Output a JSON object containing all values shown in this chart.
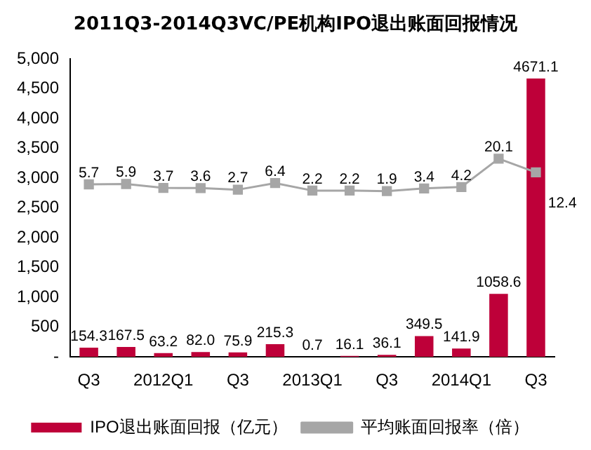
{
  "chart_data": {
    "type": "bar",
    "title": "2011Q3-2014Q3VC/PE机构IPO退出账面回报情况",
    "categories": [
      "Q3",
      null,
      "2012Q1",
      null,
      "Q3",
      null,
      "2013Q1",
      null,
      "Q3",
      null,
      "2014Q1",
      null,
      "Q3"
    ],
    "series": [
      {
        "name": "IPO退出账面回报（亿元）",
        "color": "#be0039",
        "values": [
          154.3,
          167.5,
          63.2,
          82.0,
          75.9,
          215.3,
          0.7,
          16.1,
          36.1,
          349.5,
          141.9,
          1058.6,
          4671.1
        ],
        "value_labels": [
          "154.3",
          "167.5",
          "63.2",
          "82.0",
          "75.9",
          "215.3",
          "0.7",
          "16.1",
          "36.1",
          "349.5",
          "141.9",
          "1058.6",
          "4671.1"
        ]
      },
      {
        "type": "line",
        "axis": "y2",
        "name": "平均账面回报率（倍）",
        "color": "#a6a6a6",
        "marker": "square",
        "values": [
          5.7,
          5.9,
          3.7,
          3.6,
          2.7,
          6.4,
          2.2,
          2.2,
          1.9,
          3.4,
          4.2,
          20.1,
          12.4
        ]
      }
    ],
    "ylim": [
      0,
      5000
    ],
    "yticks": [
      {
        "value": 0,
        "label": "-"
      },
      500,
      {
        "value": 1000,
        "label": "1,000"
      },
      {
        "value": 1500,
        "label": "1,500"
      },
      {
        "value": 2000,
        "label": "2,000"
      },
      {
        "value": 2500,
        "label": "2,500"
      },
      {
        "value": 3000,
        "label": "3,000"
      },
      {
        "value": 3500,
        "label": "3,500"
      },
      {
        "value": 4000,
        "label": "4,000"
      },
      {
        "value": 4500,
        "label": "4,500"
      },
      {
        "value": 5000,
        "label": "5,000"
      }
    ],
    "y2lim": [
      -91,
      76
    ],
    "data_labels": true,
    "legend": "bottom",
    "grid": false
  }
}
